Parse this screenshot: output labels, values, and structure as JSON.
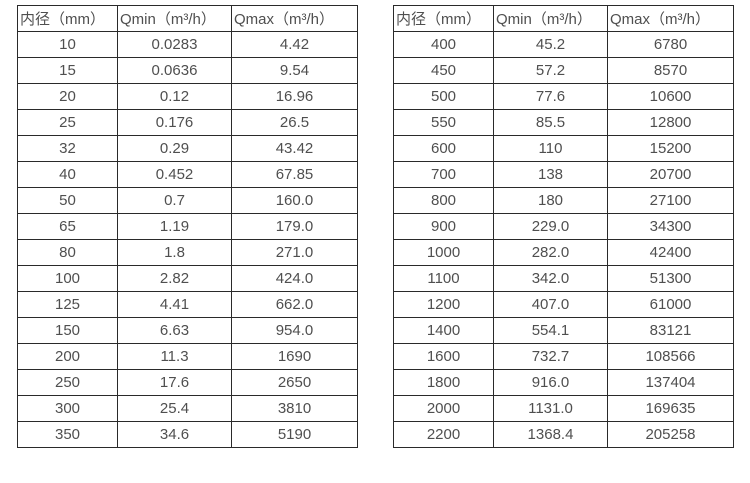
{
  "colors": {
    "background": "#ffffff",
    "border": "#2a2a2a",
    "text": "#4f4f4f"
  },
  "tables": [
    {
      "name": "flow-spec-table-small-diameters",
      "headers": [
        "内径（mm）",
        "Qmin（m³/h）",
        "Qmax（m³/h）"
      ],
      "rows": [
        [
          "10",
          "0.0283",
          "4.42"
        ],
        [
          "15",
          "0.0636",
          "9.54"
        ],
        [
          "20",
          "0.12",
          "16.96"
        ],
        [
          "25",
          "0.176",
          "26.5"
        ],
        [
          "32",
          "0.29",
          "43.42"
        ],
        [
          "40",
          "0.452",
          "67.85"
        ],
        [
          "50",
          "0.7",
          "160.0"
        ],
        [
          "65",
          "1.19",
          "179.0"
        ],
        [
          "80",
          "1.8",
          "271.0"
        ],
        [
          "100",
          "2.82",
          "424.0"
        ],
        [
          "125",
          "4.41",
          "662.0"
        ],
        [
          "150",
          "6.63",
          "954.0"
        ],
        [
          "200",
          "11.3",
          "1690"
        ],
        [
          "250",
          "17.6",
          "2650"
        ],
        [
          "300",
          "25.4",
          "3810"
        ],
        [
          "350",
          "34.6",
          "5190"
        ]
      ]
    },
    {
      "name": "flow-spec-table-large-diameters",
      "headers": [
        "内径（mm）",
        "Qmin（m³/h）",
        "Qmax（m³/h）"
      ],
      "rows": [
        [
          "400",
          "45.2",
          "6780"
        ],
        [
          "450",
          "57.2",
          "8570"
        ],
        [
          "500",
          "77.6",
          "10600"
        ],
        [
          "550",
          "85.5",
          "12800"
        ],
        [
          "600",
          "110",
          "15200"
        ],
        [
          "700",
          "138",
          "20700"
        ],
        [
          "800",
          "180",
          "27100"
        ],
        [
          "900",
          "229.0",
          "34300"
        ],
        [
          "1000",
          "282.0",
          "42400"
        ],
        [
          "1100",
          "342.0",
          "51300"
        ],
        [
          "1200",
          "407.0",
          "61000"
        ],
        [
          "1400",
          "554.1",
          "83121"
        ],
        [
          "1600",
          "732.7",
          "108566"
        ],
        [
          "1800",
          "916.0",
          "137404"
        ],
        [
          "2000",
          "1131.0",
          "169635"
        ],
        [
          "2200",
          "1368.4",
          "205258"
        ]
      ]
    }
  ]
}
